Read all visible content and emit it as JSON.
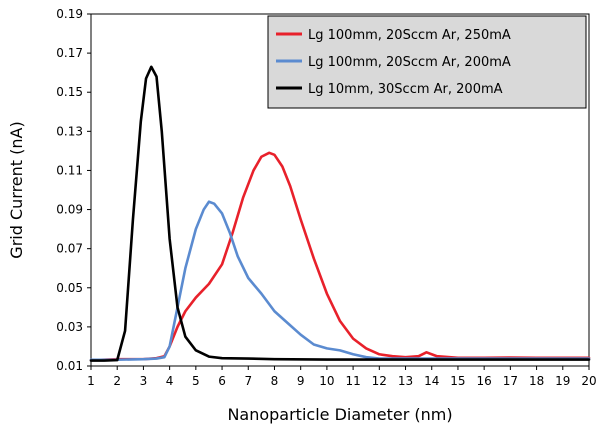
{
  "chart_data": {
    "type": "line",
    "title": "",
    "xlabel": "Nanoparticle Diameter (nm)",
    "ylabel": "Grid Current (nA)",
    "xlim": [
      1,
      20
    ],
    "ylim": [
      0.01,
      0.19
    ],
    "x_ticks": [
      1,
      2,
      3,
      4,
      5,
      6,
      7,
      8,
      9,
      10,
      11,
      12,
      13,
      14,
      15,
      16,
      17,
      18,
      19,
      20
    ],
    "y_ticks": [
      0.01,
      0.03,
      0.05,
      0.07,
      0.09,
      0.11,
      0.13,
      0.15,
      0.17,
      0.19
    ],
    "y_tick_labels": [
      "0.01",
      "0.03",
      "0.05",
      "0.07",
      "0.09",
      "0.11",
      "0.13",
      "0.15",
      "0.17",
      "0.19"
    ],
    "grid": false,
    "legend_position": "top-right",
    "series": [
      {
        "name": "Lg 100mm, 20Sccm Ar, 250mA",
        "color": "#e8212b",
        "x": [
          1.0,
          2.0,
          3.0,
          3.5,
          3.8,
          4.0,
          4.3,
          4.6,
          5.0,
          5.5,
          6.0,
          6.4,
          6.8,
          7.2,
          7.5,
          7.8,
          8.0,
          8.3,
          8.6,
          9.0,
          9.5,
          10.0,
          10.5,
          11.0,
          11.5,
          12.0,
          12.5,
          13.0,
          13.5,
          13.8,
          14.2,
          15.0,
          16.0,
          17.0,
          18.0,
          19.0,
          20.0
        ],
        "y": [
          0.013,
          0.0135,
          0.0135,
          0.014,
          0.015,
          0.02,
          0.03,
          0.038,
          0.045,
          0.052,
          0.062,
          0.078,
          0.096,
          0.11,
          0.117,
          0.119,
          0.118,
          0.112,
          0.102,
          0.085,
          0.065,
          0.047,
          0.033,
          0.024,
          0.019,
          0.016,
          0.015,
          0.0145,
          0.015,
          0.017,
          0.015,
          0.0142,
          0.0142,
          0.0143,
          0.0142,
          0.0142,
          0.0142
        ]
      },
      {
        "name": "Lg 100mm, 20Sccm Ar, 200mA",
        "color": "#5b8bd0",
        "x": [
          1.0,
          2.0,
          3.0,
          3.5,
          3.8,
          4.0,
          4.3,
          4.6,
          5.0,
          5.3,
          5.5,
          5.7,
          6.0,
          6.3,
          6.6,
          7.0,
          7.5,
          8.0,
          8.5,
          9.0,
          9.5,
          10.0,
          10.5,
          11.0,
          11.5,
          12.0,
          13.0,
          14.0,
          15.0,
          16.0,
          17.0,
          18.0,
          19.0,
          20.0
        ],
        "y": [
          0.0132,
          0.0132,
          0.0135,
          0.0138,
          0.0145,
          0.02,
          0.04,
          0.06,
          0.08,
          0.09,
          0.094,
          0.093,
          0.088,
          0.078,
          0.066,
          0.055,
          0.047,
          0.038,
          0.032,
          0.026,
          0.021,
          0.019,
          0.018,
          0.016,
          0.0145,
          0.0138,
          0.0138,
          0.0138,
          0.0138,
          0.0138,
          0.0138,
          0.0138,
          0.0138,
          0.0138
        ]
      },
      {
        "name": "Lg 10mm, 30Sccm Ar, 200mA",
        "color": "#000000",
        "x": [
          1.0,
          1.5,
          2.0,
          2.3,
          2.6,
          2.9,
          3.1,
          3.3,
          3.5,
          3.7,
          4.0,
          4.3,
          4.6,
          5.0,
          5.5,
          6.0,
          7.0,
          8.0,
          10.0,
          12.0,
          14.0,
          16.0,
          18.0,
          20.0
        ],
        "y": [
          0.0128,
          0.0128,
          0.013,
          0.028,
          0.085,
          0.135,
          0.157,
          0.163,
          0.158,
          0.13,
          0.075,
          0.04,
          0.025,
          0.018,
          0.0148,
          0.014,
          0.0138,
          0.0135,
          0.0133,
          0.0133,
          0.0133,
          0.0133,
          0.0133,
          0.0133
        ]
      }
    ]
  }
}
